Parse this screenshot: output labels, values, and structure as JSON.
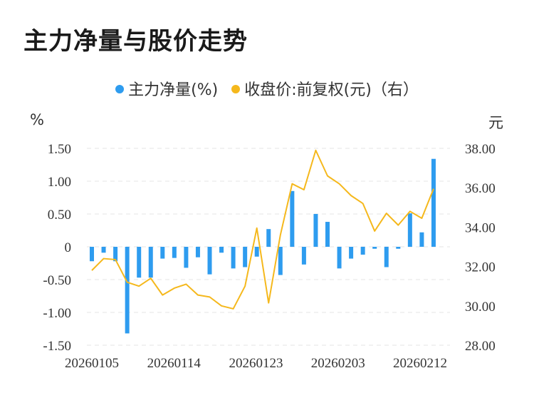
{
  "title": "主力净量与股价走势",
  "chart_data": {
    "type": "bar+line",
    "title": "主力净量与股价走势",
    "y_unit_left": "%",
    "y_unit_right": "元",
    "legend_position": "top-center",
    "grid": true,
    "x_tick_labels": [
      "20260105",
      "20260114",
      "20260123",
      "20260203",
      "20260212"
    ],
    "y_left_ticks": [
      "1.50",
      "1.00",
      "0.50",
      "0",
      "-0.50",
      "-1.00",
      "-1.50"
    ],
    "y_right_ticks": [
      "38.00",
      "36.00",
      "34.00",
      "32.00",
      "30.00",
      "28.00"
    ],
    "ylim_left": [
      -1.5,
      1.5
    ],
    "ylim_right": [
      28,
      38
    ],
    "series": [
      {
        "name": "主力净量(%)",
        "type": "bar",
        "color": "#2e9cef",
        "values": [
          -0.22,
          -0.09,
          -0.22,
          -1.32,
          -0.47,
          -0.47,
          -0.18,
          -0.17,
          -0.32,
          -0.16,
          -0.42,
          -0.09,
          -0.33,
          -0.31,
          -0.15,
          0.27,
          -0.43,
          0.85,
          -0.27,
          0.5,
          0.38,
          -0.33,
          -0.18,
          -0.12,
          -0.03,
          -0.31,
          -0.03,
          0.51,
          0.22,
          1.34
        ]
      },
      {
        "name": "收盘价:前复权(元)（右）",
        "type": "line",
        "color": "#f5b81c",
        "values": [
          31.8,
          32.4,
          32.35,
          31.2,
          31.0,
          31.4,
          30.55,
          30.9,
          31.1,
          30.55,
          30.45,
          30.0,
          29.85,
          31.0,
          33.95,
          30.15,
          33.6,
          36.2,
          35.9,
          37.9,
          36.6,
          36.2,
          35.6,
          35.2,
          33.8,
          34.7,
          34.1,
          34.8,
          34.45,
          35.95
        ]
      }
    ]
  }
}
